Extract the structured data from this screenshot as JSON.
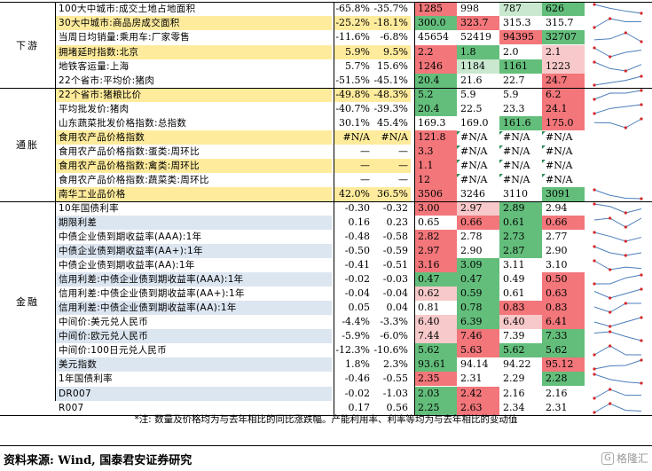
{
  "groups": [
    {
      "label": "下游",
      "rows": [
        0,
        6
      ]
    },
    {
      "label": "通胀",
      "rows": [
        6,
        14
      ]
    },
    {
      "label": "金融",
      "rows": [
        14,
        28
      ]
    }
  ],
  "colors": {
    "red_strong": "#f2767a",
    "red_light": "#f8c9ca",
    "green_strong": "#63be7b",
    "green_light": "#c9e8cf",
    "name_highlight": "#ffeb9c",
    "name_blue": "#dce6f1"
  },
  "rows": [
    {
      "name": "100大中城市:成交土地占地面积",
      "y1": "-65.8%",
      "y2": "-35.7%",
      "vals": [
        "1285",
        "998",
        "787",
        "626"
      ],
      "colors": [
        "red_strong",
        "",
        "green_light",
        "green_strong"
      ],
      "nameColor": ""
    },
    {
      "name": "30大中城市:商品房成交面积",
      "y1": "-25.2%",
      "y2": "-18.1%",
      "vals": [
        "300.0",
        "323.7",
        "315.3",
        "315.7"
      ],
      "colors": [
        "green_strong",
        "red_strong",
        "",
        ""
      ],
      "nameColor": "name_highlight"
    },
    {
      "name": "当周日均销量:乘用车:厂家零售",
      "y1": "-11.6%",
      "y2": "-6.8%",
      "vals": [
        "45654",
        "52419",
        "94395",
        "32707"
      ],
      "colors": [
        "",
        "",
        "red_strong",
        "green_strong"
      ],
      "nameColor": ""
    },
    {
      "name": "拥堵延时指数:北京",
      "y1": "5.9%",
      "y2": "9.5%",
      "vals": [
        "2.2",
        "1.8",
        "2.0",
        "2.1"
      ],
      "colors": [
        "red_strong",
        "green_strong",
        "",
        "red_light"
      ],
      "nameColor": "name_highlight"
    },
    {
      "name": "地铁客运量:上海",
      "y1": "5.7%",
      "y2": "15.6%",
      "vals": [
        "1246",
        "1184",
        "1161",
        "1223"
      ],
      "colors": [
        "red_strong",
        "green_light",
        "green_strong",
        "red_light"
      ],
      "nameColor": ""
    },
    {
      "name": "22个省市:平均价:猪肉",
      "y1": "-51.5%",
      "y2": "-45.1%",
      "vals": [
        "20.4",
        "21.6",
        "22.7",
        "24.7"
      ],
      "colors": [
        "green_strong",
        "",
        "",
        "red_strong"
      ],
      "nameColor": ""
    },
    {
      "name": "22个省市:猪粮比价",
      "y1": "-49.8%",
      "y2": "-48.3%",
      "vals": [
        "5.2",
        "5.9",
        "5.9",
        "6.2"
      ],
      "colors": [
        "green_strong",
        "",
        "",
        "red_strong"
      ],
      "nameColor": "name_highlight"
    },
    {
      "name": "平均批发价:猪肉",
      "y1": "-40.7%",
      "y2": "-39.3%",
      "vals": [
        "20.4",
        "22.5",
        "23.3",
        "24.1"
      ],
      "colors": [
        "green_strong",
        "",
        "",
        "red_strong"
      ],
      "nameColor": ""
    },
    {
      "name": "山东蔬菜批发价格指数:总指数",
      "y1": "30.1%",
      "y2": "45.4%",
      "vals": [
        "169.3",
        "169.0",
        "161.6",
        "175.0"
      ],
      "colors": [
        "",
        "",
        "green_strong",
        "red_strong"
      ],
      "nameColor": ""
    },
    {
      "name": "食用农产品价格指数",
      "y1": "#N/A",
      "y2": "#N/A",
      "vals": [
        "121.8",
        "#N/A",
        "#N/A",
        "#N/A"
      ],
      "colors": [
        "red_strong",
        "",
        "",
        ""
      ],
      "nameColor": "name_highlight"
    },
    {
      "name": "食用农产品价格指数:蛋类:周环比",
      "y1": "—",
      "y2": "—",
      "vals": [
        "3.3",
        "#N/A",
        "#N/A",
        "#N/A"
      ],
      "colors": [
        "red_strong",
        "",
        "",
        ""
      ],
      "nameColor": ""
    },
    {
      "name": "食用农产品价格指数:禽类:周环比",
      "y1": "—",
      "y2": "—",
      "vals": [
        "1.1",
        "#N/A",
        "#N/A",
        "#N/A"
      ],
      "colors": [
        "red_strong",
        "",
        "",
        ""
      ],
      "nameColor": "name_highlight"
    },
    {
      "name": "食用农产品价格指数:蔬菜类:周环比",
      "y1": "—",
      "y2": "—",
      "vals": [
        "12",
        "#N/A",
        "#N/A",
        "#N/A"
      ],
      "colors": [
        "red_strong",
        "",
        "",
        ""
      ],
      "nameColor": ""
    },
    {
      "name": "南华工业品价格",
      "y1": "42.0%",
      "y2": "36.5%",
      "vals": [
        "3506",
        "3246",
        "3110",
        "3091"
      ],
      "colors": [
        "red_strong",
        "",
        "",
        "green_strong"
      ],
      "nameColor": "name_highlight"
    },
    {
      "name": "10年国债利率",
      "y1": "-0.30",
      "y2": "-0.32",
      "vals": [
        "3.00",
        "2.97",
        "2.89",
        "2.94"
      ],
      "colors": [
        "red_strong",
        "red_light",
        "green_strong",
        ""
      ],
      "nameColor": ""
    },
    {
      "name": "期限利差",
      "y1": "0.16",
      "y2": "0.23",
      "vals": [
        "0.65",
        "0.66",
        "0.61",
        "0.66"
      ],
      "colors": [
        "",
        "red_strong",
        "green_strong",
        "red_strong"
      ],
      "nameColor": "name_blue"
    },
    {
      "name": "中债企业债到期收益率(AAA):1年",
      "y1": "-0.48",
      "y2": "-0.58",
      "vals": [
        "2.82",
        "2.78",
        "2.73",
        "2.77"
      ],
      "colors": [
        "red_strong",
        "",
        "green_strong",
        ""
      ],
      "nameColor": ""
    },
    {
      "name": "中债企业债到期收益率(AA+):1年",
      "y1": "-0.50",
      "y2": "-0.59",
      "vals": [
        "2.97",
        "2.90",
        "2.87",
        "2.90"
      ],
      "colors": [
        "red_strong",
        "",
        "green_strong",
        ""
      ],
      "nameColor": "name_blue"
    },
    {
      "name": "中债企业债到期收益率(AA):1年",
      "y1": "-0.41",
      "y2": "-0.51",
      "vals": [
        "3.16",
        "3.09",
        "3.11",
        "3.10"
      ],
      "colors": [
        "red_strong",
        "green_strong",
        "",
        ""
      ],
      "nameColor": ""
    },
    {
      "name": "信用利差:中债企业债到期收益率(AAA):1年",
      "y1": "-0.02",
      "y2": "-0.03",
      "vals": [
        "0.47",
        "0.47",
        "0.49",
        "0.50"
      ],
      "colors": [
        "green_strong",
        "green_strong",
        "",
        "red_strong"
      ],
      "nameColor": "name_blue"
    },
    {
      "name": "信用利差:中债企业债到期收益率(AA+):1年",
      "y1": "-0.04",
      "y2": "-0.04",
      "vals": [
        "0.62",
        "0.59",
        "0.61",
        "0.63"
      ],
      "colors": [
        "red_light",
        "green_strong",
        "",
        "red_strong"
      ],
      "nameColor": ""
    },
    {
      "name": "信用利差:中债企业债到期收益率(AA):1年",
      "y1": "0.05",
      "y2": "0.04",
      "vals": [
        "0.81",
        "0.78",
        "0.83",
        "0.83"
      ],
      "colors": [
        "",
        "green_strong",
        "red_strong",
        "red_strong"
      ],
      "nameColor": "name_blue"
    },
    {
      "name": "中间价:美元兑人民币",
      "y1": "-4.4%",
      "y2": "-3.3%",
      "vals": [
        "6.40",
        "6.39",
        "6.40",
        "6.41"
      ],
      "colors": [
        "red_light",
        "green_strong",
        "red_light",
        "red_strong"
      ],
      "nameColor": ""
    },
    {
      "name": "中间价:欧元兑人民币",
      "y1": "-5.9%",
      "y2": "-6.0%",
      "vals": [
        "7.44",
        "7.46",
        "7.39",
        "7.33"
      ],
      "colors": [
        "red_light",
        "red_strong",
        "",
        "green_strong"
      ],
      "nameColor": "name_blue"
    },
    {
      "name": "中间价:100日元兑人民币",
      "y1": "-12.3%",
      "y2": "-10.6%",
      "vals": [
        "5.62",
        "5.63",
        "5.62",
        "5.62"
      ],
      "colors": [
        "green_strong",
        "red_strong",
        "green_strong",
        "green_strong"
      ],
      "nameColor": ""
    },
    {
      "name": "美元指数",
      "y1": "1.8%",
      "y2": "2.3%",
      "vals": [
        "93.61",
        "94.14",
        "94.22",
        "95.12"
      ],
      "colors": [
        "green_strong",
        "",
        "",
        "red_strong"
      ],
      "nameColor": "name_blue"
    },
    {
      "name": "1年国债利率",
      "y1": "-0.46",
      "y2": "-0.55",
      "vals": [
        "2.35",
        "2.31",
        "2.29",
        "2.28"
      ],
      "colors": [
        "red_strong",
        "",
        "",
        "green_strong"
      ],
      "nameColor": ""
    },
    {
      "name": "DR007",
      "y1": "-0.02",
      "y2": "-1.03",
      "vals": [
        "2.03",
        "2.42",
        "2.16",
        "2.16"
      ],
      "colors": [
        "green_strong",
        "red_strong",
        "",
        ""
      ],
      "nameColor": "name_blue"
    },
    {
      "name": "R007",
      "y1": "0.17",
      "y2": "0.56",
      "vals": [
        "2.25",
        "2.63",
        "2.34",
        "2.31"
      ],
      "colors": [
        "green_strong",
        "red_strong",
        "",
        ""
      ],
      "nameColor": ""
    }
  ],
  "note": "*注: 数量及价格均为与去年相比的同比涨跌幅。产能利用率、利率等均为与去年相比的变动值",
  "source": "资料来源: Wind, 国泰君安证券研究",
  "watermark": "格隆汇"
}
